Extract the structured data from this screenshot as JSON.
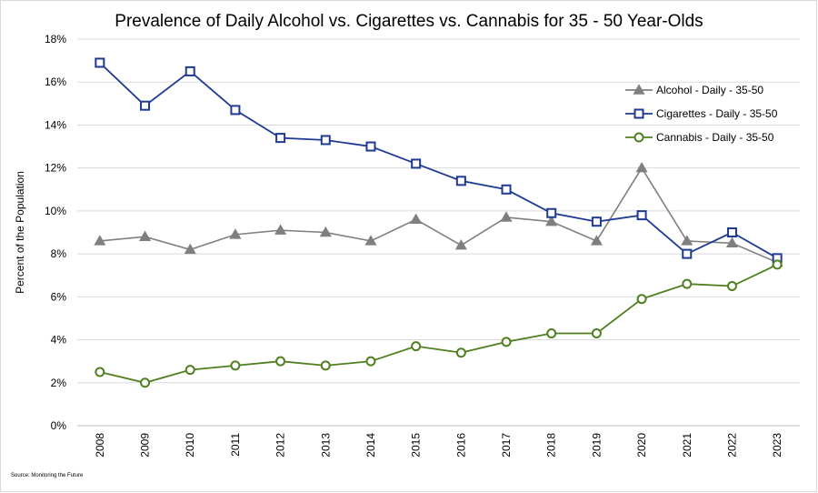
{
  "chart_data": {
    "type": "line",
    "title": "Prevalence of Daily Alcohol vs. Cigarettes vs. Cannabis for 35 - 50 Year-Olds",
    "xlabel": "",
    "ylabel": "Percent of the Population",
    "ylim": [
      0,
      18
    ],
    "yticks": [
      "0%",
      "2%",
      "4%",
      "6%",
      "8%",
      "10%",
      "12%",
      "14%",
      "16%",
      "18%"
    ],
    "grid": true,
    "legend_position": "top-right",
    "source": "Source: Monitoring the Future",
    "x": [
      "2008",
      "2009",
      "2010",
      "2011",
      "2012",
      "2013",
      "2014",
      "2015",
      "2016",
      "2017",
      "2018",
      "2019",
      "2020",
      "2021",
      "2022",
      "2023"
    ],
    "series": [
      {
        "name": "Alcohol - Daily - 35-50",
        "marker": "triangle",
        "color": "#7f7f7f",
        "values": [
          8.6,
          8.8,
          8.2,
          8.9,
          9.1,
          9.0,
          8.6,
          9.6,
          8.4,
          9.7,
          9.5,
          8.6,
          12.0,
          8.6,
          8.5,
          7.6
        ]
      },
      {
        "name": "Cigarettes - Daily - 35-50",
        "marker": "square",
        "color": "#1f3a93",
        "values": [
          16.9,
          14.9,
          16.5,
          14.7,
          13.4,
          13.3,
          13.0,
          12.2,
          11.4,
          11.0,
          9.9,
          9.5,
          9.8,
          8.0,
          9.0,
          7.8
        ]
      },
      {
        "name": "Cannabis - Daily - 35-50",
        "marker": "circle",
        "color": "#4f7f1f",
        "values": [
          2.5,
          2.0,
          2.6,
          2.8,
          3.0,
          2.8,
          3.0,
          3.7,
          3.4,
          3.9,
          4.3,
          4.3,
          5.9,
          6.6,
          6.5,
          7.5
        ]
      }
    ]
  }
}
